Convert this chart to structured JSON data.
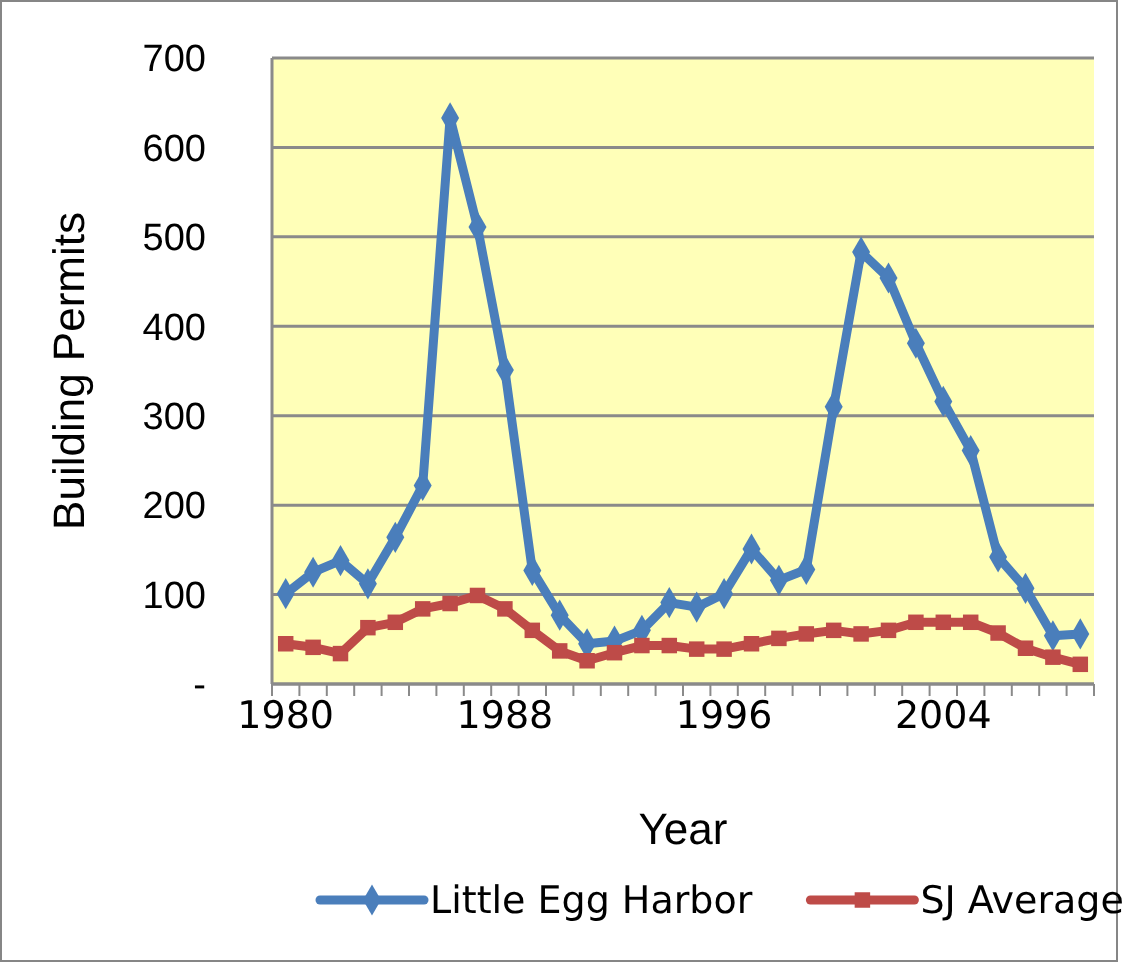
{
  "chart_data": {
    "type": "line",
    "xlabel": "Year",
    "ylabel": "Building Permits",
    "categories": [
      "1980",
      null,
      null,
      null,
      null,
      null,
      null,
      null,
      "1988",
      null,
      null,
      null,
      null,
      null,
      null,
      null,
      "1996",
      null,
      null,
      null,
      null,
      null,
      null,
      null,
      "2004",
      null,
      null,
      null,
      null,
      null
    ],
    "series": [
      {
        "name": "Little Egg Harbor",
        "color": "#4a7ebb",
        "marker": "diamond",
        "values": [
          101,
          125,
          138,
          112,
          164,
          222,
          633,
          511,
          351,
          127,
          77,
          45,
          48,
          60,
          91,
          86,
          101,
          151,
          116,
          128,
          310,
          483,
          454,
          381,
          316,
          261,
          142,
          107,
          54,
          56
        ]
      },
      {
        "name": "SJ Average",
        "color": "#be4b48",
        "marker": "square",
        "values": [
          45,
          41,
          34,
          63,
          69,
          84,
          90,
          99,
          84,
          60,
          37,
          26,
          35,
          43,
          43,
          39,
          39,
          45,
          51,
          56,
          60,
          56,
          60,
          69,
          69,
          69,
          57,
          40,
          30,
          22
        ]
      }
    ],
    "ylim": [
      0,
      700
    ],
    "yticks": [
      {
        "value": 0,
        "label": "-"
      },
      100,
      200,
      300,
      400,
      500,
      600,
      700
    ],
    "grid": "y",
    "legend": "bottom"
  }
}
